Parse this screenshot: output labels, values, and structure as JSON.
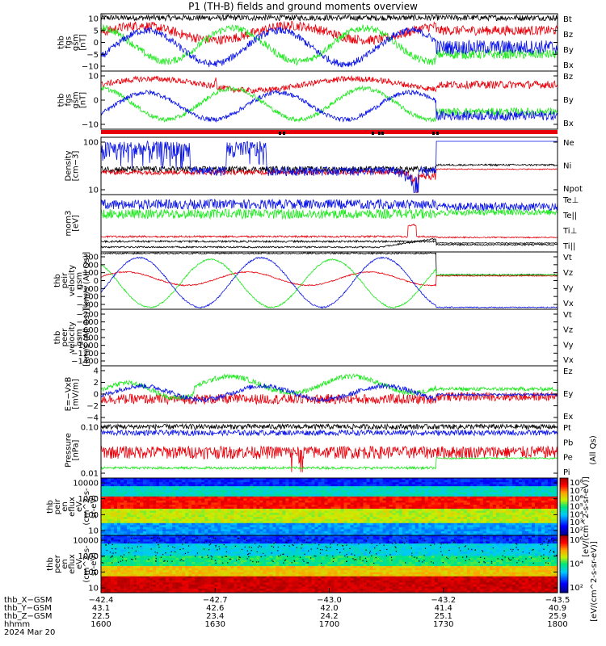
{
  "title": "P1 (TH-B) fields and ground moments overview",
  "colors": {
    "black": "#000000",
    "red": "#e8000b",
    "green": "#1ee81e",
    "blue": "#0a14e6"
  },
  "chart_data": [
    {
      "type": "line",
      "ylabel": [
        "thb",
        "fgs",
        "gsm",
        "[nT]"
      ],
      "yticks": [
        "10",
        "5",
        "0",
        "−5",
        "−10"
      ],
      "ylim": [
        -12,
        12
      ],
      "series": [
        {
          "name": "Bt",
          "color": "black"
        },
        {
          "name": "Bz",
          "color": "red"
        },
        {
          "name": "By",
          "color": "green"
        },
        {
          "name": "Bx",
          "color": "blue"
        }
      ]
    },
    {
      "type": "line",
      "ylabel": [
        "thb",
        "fgs",
        "gsm",
        "[nT]"
      ],
      "yticks": [
        "10",
        "0",
        "−10"
      ],
      "ylim": [
        -15,
        15
      ],
      "series": [
        {
          "name": "Bz",
          "color": "red"
        },
        {
          "name": "By",
          "color": "green"
        },
        {
          "name": "Bx",
          "color": "blue"
        }
      ]
    },
    {
      "type": "line",
      "ylabel": [
        "Density",
        "[cm−3]"
      ],
      "yticks": [
        "100",
        "10"
      ],
      "log": true,
      "series": [
        {
          "name": "Ne",
          "color": "red"
        },
        {
          "name": "Ni",
          "color": "black"
        },
        {
          "name": "Npot",
          "color": "blue"
        }
      ]
    },
    {
      "type": "line",
      "ylabel": [
        "mom3",
        "[eV]"
      ],
      "yticks": [],
      "series": [
        {
          "name": "Te⊥",
          "color": "red"
        },
        {
          "name": "Te||",
          "color": "black"
        },
        {
          "name": "Ti⊥",
          "color": "red"
        },
        {
          "name": "Ti||",
          "color": "green"
        }
      ]
    },
    {
      "type": "line",
      "ylabel": [
        "thb",
        "peir",
        "velocity",
        "gsm",
        "[km/s (All Qs)]"
      ],
      "yticks": [
        "300",
        "200",
        "100",
        "0",
        "−100",
        "−200",
        "−300"
      ],
      "ylim": [
        -300,
        300
      ],
      "series": [
        {
          "name": "Vt",
          "color": "black"
        },
        {
          "name": "Vz",
          "color": "red"
        },
        {
          "name": "Vy",
          "color": "green"
        },
        {
          "name": "Vx",
          "color": "blue"
        }
      ]
    },
    {
      "type": "line",
      "ylabel": [
        "thb",
        "peer",
        "velocity",
        "gsm",
        "[km/s (All Qs)]"
      ],
      "yticks": [
        "−200",
        "−400",
        "−600",
        "−800",
        "−1000",
        "−1200",
        "−1400"
      ],
      "ylim": [
        -1500,
        -150
      ],
      "series": [
        {
          "name": "Vt",
          "color": "black"
        },
        {
          "name": "Vz",
          "color": "red"
        },
        {
          "name": "Vy",
          "color": "green"
        },
        {
          "name": "Vx",
          "color": "blue"
        }
      ]
    },
    {
      "type": "line",
      "ylabel": [
        "E=−VxB",
        "[mV/m]"
      ],
      "yticks": [
        "4",
        "2",
        "0",
        "−2",
        "−4"
      ],
      "ylim": [
        -4.5,
        4.5
      ],
      "series": [
        {
          "name": "Ez",
          "color": "red"
        },
        {
          "name": "Ey",
          "color": "green"
        },
        {
          "name": "Ex",
          "color": "blue"
        }
      ]
    },
    {
      "type": "line",
      "ylabel": [
        "Pressure",
        "[nPa]"
      ],
      "yticks": [
        "0.10",
        "0.01"
      ],
      "log": true,
      "series": [
        {
          "name": "Pt",
          "color": "black"
        },
        {
          "name": "Pb",
          "color": "red"
        },
        {
          "name": "Pe",
          "color": "green"
        },
        {
          "name": "Pi",
          "color": "blue"
        }
      ],
      "side_label": "(All Qs)"
    },
    {
      "type": "heatmap",
      "ylabel": [
        "thb",
        "peir",
        "en",
        "eflux",
        "eV",
        "(cm^2-s-",
        "sr-eV)"
      ],
      "yticks": [
        "10000",
        "1000",
        "100",
        "10"
      ],
      "log": true
    },
    {
      "type": "heatmap",
      "ylabel": [
        "thb",
        "peer",
        "en",
        "eflux",
        "eV",
        "(cm^2-s-",
        "sr-eV)"
      ],
      "yticks": [
        "10000",
        "1000",
        "100",
        "10"
      ],
      "log": true
    }
  ],
  "colorbar": {
    "label": "[eV/(cm^2-s-sr-eV)]",
    "inner_label": "[eV/(cm^2-s-sr-eV)]",
    "ticks_top": [
      "10⁸",
      "10⁷",
      "10⁶",
      "10⁵",
      "10⁴",
      "10³",
      "10²"
    ],
    "ticks_bottom": [
      "10⁶",
      "10⁴",
      "10²"
    ]
  },
  "x_axis": {
    "rows": [
      {
        "label": "thb_X−GSM",
        "values": [
          "−42.4",
          "−42.7",
          "−43.0",
          "−43.2",
          "−43.5"
        ]
      },
      {
        "label": "thb_Y−GSM",
        "values": [
          "43.1",
          "42.6",
          "42.0",
          "41.4",
          "40.9"
        ]
      },
      {
        "label": "thb_Z−GSM",
        "values": [
          "22.5",
          "23.4",
          "24.2",
          "25.1",
          "25.9"
        ]
      },
      {
        "label": "hhmm",
        "values": [
          "1600",
          "1630",
          "1700",
          "1730",
          "1800"
        ]
      }
    ],
    "date": "2024 Mar 20"
  }
}
